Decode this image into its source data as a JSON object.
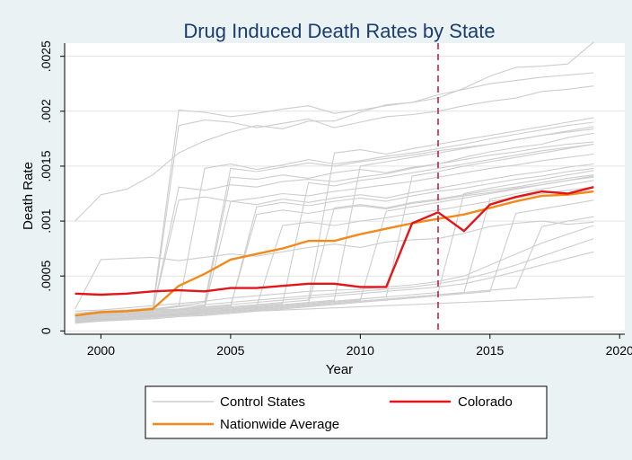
{
  "chart_data": {
    "type": "line",
    "title": "Drug Induced Death Rates by State",
    "xlabel": "Year",
    "ylabel": "Death Rate",
    "xlim": [
      1998.6,
      2020.2
    ],
    "ylim": [
      -3e-05,
      0.00262
    ],
    "x_ticks": [
      2000,
      2005,
      2010,
      2015,
      2020
    ],
    "x_tick_labels": [
      "2000",
      "2005",
      "2010",
      "2015",
      "2020"
    ],
    "y_ticks": [
      0,
      0.0005,
      0.001,
      0.0015,
      0.002,
      0.0025
    ],
    "y_tick_labels": [
      "0",
      ".0005",
      ".001",
      ".0015",
      ".002",
      ".0025"
    ],
    "grid": true,
    "reference_line": {
      "x": 2013,
      "style": "dashed",
      "color": "#b8123a"
    },
    "legend_position": "bottom",
    "colors": {
      "control": "#cdcdcd",
      "colorado": "#e0161a",
      "nationwide": "#f28a1b",
      "background": "#eaf2f3",
      "plot_background": "#ffffff"
    },
    "x": [
      1999,
      2000,
      2001,
      2002,
      2003,
      2004,
      2005,
      2006,
      2007,
      2008,
      2009,
      2010,
      2011,
      2012,
      2013,
      2014,
      2015,
      2016,
      2017,
      2018,
      2019
    ],
    "series": [
      {
        "name": "Colorado",
        "role": "highlight",
        "values": [
          0.00034,
          0.00033,
          0.00034,
          0.00036,
          0.00037,
          0.00036,
          0.00039,
          0.00039,
          0.00041,
          0.00043,
          0.00043,
          0.0004,
          0.0004,
          0.00098,
          0.00108,
          0.00091,
          0.00115,
          0.00122,
          0.00127,
          0.00125,
          0.00131
        ]
      },
      {
        "name": "Nationwide Average",
        "role": "highlight",
        "values": [
          0.00014,
          0.00017,
          0.00018,
          0.0002,
          0.00041,
          0.00052,
          0.00065,
          0.0007,
          0.00075,
          0.00082,
          0.00082,
          0.00088,
          0.00093,
          0.00098,
          0.00102,
          0.00106,
          0.00112,
          0.00118,
          0.00123,
          0.00124,
          0.00127
        ]
      },
      {
        "name": "Control States",
        "role": "background",
        "values": [
          0.001,
          0.00124,
          0.00129,
          0.00142,
          0.00162,
          0.00173,
          0.00181,
          0.00187,
          0.00184,
          0.00191,
          0.00191,
          0.00199,
          0.00206,
          0.00208,
          0.00212,
          0.00221,
          0.00232,
          0.0024,
          0.00241,
          0.00243,
          0.00263
        ]
      },
      {
        "role": "background",
        "values": [
          0.0002,
          0.00065,
          0.00066,
          0.00067,
          0.00064,
          0.00067,
          0.0007,
          0.00068,
          0.00072,
          0.00076,
          0.00079,
          0.00076,
          0.00081,
          0.00083,
          0.00084,
          0.00089,
          0.00095,
          0.00098,
          0.001,
          0.00097,
          0.00099
        ]
      },
      {
        "role": "background",
        "values": [
          0.00016,
          0.00018,
          0.00019,
          0.00021,
          0.00201,
          0.00199,
          0.00195,
          0.00198,
          0.00202,
          0.00205,
          0.00198,
          0.00201,
          0.00205,
          0.00208,
          0.00215,
          0.0022,
          0.00225,
          0.00228,
          0.00231,
          0.00233,
          0.00235
        ]
      },
      {
        "role": "background",
        "values": [
          0.00013,
          0.00015,
          0.00016,
          0.00018,
          0.00187,
          0.00192,
          0.0019,
          0.00185,
          0.00189,
          0.00193,
          0.00185,
          0.0019,
          0.00195,
          0.00197,
          0.002,
          0.00205,
          0.00209,
          0.00212,
          0.00218,
          0.0022,
          0.00223
        ]
      },
      {
        "role": "background",
        "values": [
          0.00012,
          0.00014,
          0.00015,
          0.00017,
          0.00131,
          0.00128,
          0.00133,
          0.00131,
          0.00136,
          0.00138,
          0.00136,
          0.0014,
          0.00143,
          0.00148,
          0.00152,
          0.00158,
          0.00163,
          0.00167,
          0.0017,
          0.00176,
          0.0018
        ]
      },
      {
        "role": "background",
        "values": [
          0.00011,
          0.00014,
          0.00016,
          0.00018,
          0.00119,
          0.00122,
          0.00118,
          0.00121,
          0.00125,
          0.00123,
          0.00127,
          0.0013,
          0.00133,
          0.00136,
          0.0014,
          0.00144,
          0.00148,
          0.00151,
          0.00155,
          0.00158,
          0.00161
        ]
      },
      {
        "role": "background",
        "values": [
          0.00013,
          0.00015,
          0.00017,
          0.00019,
          0.00022,
          0.00148,
          0.00152,
          0.00147,
          0.00151,
          0.00156,
          0.00152,
          0.00155,
          0.00159,
          0.00162,
          0.00166,
          0.0017,
          0.00175,
          0.00179,
          0.00183,
          0.00187,
          0.0019
        ]
      },
      {
        "role": "background",
        "values": [
          0.00014,
          0.00016,
          0.00018,
          0.0002,
          0.00023,
          0.00026,
          0.00148,
          0.00145,
          0.00149,
          0.00153,
          0.0015,
          0.00154,
          0.00157,
          0.0016,
          0.00164,
          0.00167,
          0.0017,
          0.00174,
          0.00178,
          0.00181,
          0.00184
        ]
      },
      {
        "role": "background",
        "values": [
          0.00012,
          0.00014,
          0.00016,
          0.00018,
          0.0002,
          0.00023,
          0.0014,
          0.00138,
          0.00142,
          0.00139,
          0.00144,
          0.00147,
          0.00144,
          0.00149,
          0.00152,
          0.00156,
          0.0016,
          0.00163,
          0.00167,
          0.0017,
          0.00172
        ]
      },
      {
        "role": "background",
        "values": [
          0.00011,
          0.00013,
          0.00015,
          0.00016,
          0.00019,
          0.00021,
          0.00118,
          0.00115,
          0.0012,
          0.00117,
          0.00121,
          0.00124,
          0.00121,
          0.00126,
          0.0013,
          0.00134,
          0.00138,
          0.00142,
          0.00145,
          0.00149,
          0.00152
        ]
      },
      {
        "role": "background",
        "values": [
          0.0001,
          0.00012,
          0.00013,
          0.00015,
          0.00017,
          0.00019,
          0.00022,
          0.00113,
          0.00117,
          0.00114,
          0.00118,
          0.00121,
          0.00118,
          0.00123,
          0.00127,
          0.0013,
          0.00134,
          0.00138,
          0.00141,
          0.00145,
          0.00148
        ]
      },
      {
        "role": "background",
        "values": [
          0.00012,
          0.00014,
          0.00015,
          0.00017,
          0.00019,
          0.00021,
          0.00023,
          0.00106,
          0.0011,
          0.00107,
          0.00111,
          0.00114,
          0.00111,
          0.00116,
          0.00119,
          0.00123,
          0.00126,
          0.0013,
          0.00133,
          0.00137,
          0.0014
        ]
      },
      {
        "role": "background",
        "values": [
          9e-05,
          0.00011,
          0.00013,
          0.00014,
          0.00016,
          0.00018,
          0.0002,
          0.00022,
          0.00096,
          0.00099,
          0.00096,
          0.001,
          0.00103,
          0.00107,
          0.0011,
          0.00114,
          0.00118,
          0.00121,
          0.00125,
          0.00128,
          0.00131
        ]
      },
      {
        "role": "background",
        "values": [
          0.0001,
          0.00012,
          0.00013,
          0.00015,
          0.00017,
          0.00019,
          0.00021,
          0.00023,
          0.00025,
          0.00135,
          0.00132,
          0.00137,
          0.0014,
          0.00144,
          0.00148,
          0.00152,
          0.00156,
          0.0016,
          0.00164,
          0.00167,
          0.0017
        ]
      },
      {
        "role": "background",
        "values": [
          0.00011,
          0.00013,
          0.00014,
          0.00016,
          0.00018,
          0.0002,
          0.00022,
          0.00024,
          0.00026,
          0.00028,
          0.00162,
          0.00165,
          0.00161,
          0.00166,
          0.0017,
          0.00174,
          0.00178,
          0.00182,
          0.00186,
          0.0019,
          0.00194
        ]
      },
      {
        "role": "background",
        "values": [
          9e-05,
          0.0001,
          0.00012,
          0.00013,
          0.00015,
          0.00017,
          0.00019,
          0.00021,
          0.00023,
          0.00025,
          0.00112,
          0.00115,
          0.00112,
          0.00117,
          0.0012,
          0.00124,
          0.00128,
          0.00131,
          0.00135,
          0.00139,
          0.00142
        ]
      },
      {
        "role": "background",
        "values": [
          0.0001,
          0.00011,
          0.00013,
          0.00014,
          0.00016,
          0.00018,
          0.0002,
          0.00022,
          0.00024,
          0.00026,
          0.00028,
          0.0015,
          0.00154,
          0.00158,
          0.00162,
          0.00166,
          0.0017,
          0.00174,
          0.00178,
          0.00182,
          0.00186
        ]
      },
      {
        "role": "background",
        "values": [
          8e-05,
          0.0001,
          0.00011,
          0.00013,
          0.00014,
          0.00016,
          0.00018,
          0.0002,
          0.00022,
          0.00024,
          0.00026,
          0.00028,
          0.00109,
          0.00113,
          0.00117,
          0.00121,
          0.00125,
          0.00129,
          0.00133,
          0.00137,
          0.00141
        ]
      },
      {
        "role": "background",
        "values": [
          9e-05,
          0.0001,
          0.00012,
          0.00013,
          0.00015,
          0.00017,
          0.00019,
          0.00021,
          0.00023,
          0.00025,
          0.00027,
          0.00029,
          0.00031,
          0.00141,
          0.00145,
          0.0015,
          0.00154,
          0.00158,
          0.00162,
          0.00166,
          0.0017
        ]
      },
      {
        "role": "background",
        "values": [
          0.0001,
          0.00011,
          0.00012,
          0.00014,
          0.00015,
          0.00017,
          0.00019,
          0.00021,
          0.00023,
          0.00025,
          0.00027,
          0.00029,
          0.00031,
          0.00033,
          0.00035,
          0.00125,
          0.0013,
          0.00134,
          0.00138,
          0.00142,
          0.00146
        ]
      },
      {
        "role": "background",
        "values": [
          8e-05,
          9e-05,
          0.00011,
          0.00012,
          0.00014,
          0.00015,
          0.00017,
          0.00019,
          0.00021,
          0.00023,
          0.00025,
          0.00027,
          0.00029,
          0.00031,
          0.00033,
          0.00035,
          0.0012,
          0.00125,
          0.00129,
          0.00133,
          0.00137
        ]
      },
      {
        "role": "background",
        "values": [
          7e-05,
          9e-05,
          0.0001,
          0.00011,
          0.00013,
          0.00014,
          0.00016,
          0.00018,
          0.0002,
          0.00022,
          0.00024,
          0.00026,
          0.00028,
          0.0003,
          0.00032,
          0.00034,
          0.00036,
          0.00107,
          0.00111,
          0.00115,
          0.00119
        ]
      },
      {
        "role": "background",
        "values": [
          9e-05,
          0.0001,
          0.00011,
          0.00013,
          0.00014,
          0.00016,
          0.00017,
          0.00019,
          0.00021,
          0.00023,
          0.00025,
          0.00027,
          0.00029,
          0.00031,
          0.00033,
          0.00035,
          0.00037,
          0.00039,
          0.00095,
          0.001,
          0.00104
        ]
      },
      {
        "role": "background",
        "values": [
          0.00011,
          0.00012,
          0.00013,
          0.00014,
          0.00015,
          0.00016,
          0.00017,
          0.00018,
          0.00019,
          0.0002,
          0.00021,
          0.00022,
          0.00023,
          0.00024,
          0.00025,
          0.00026,
          0.00027,
          0.00028,
          0.00029,
          0.0003,
          0.00031
        ]
      },
      {
        "role": "background",
        "values": [
          0.00018,
          0.00019,
          0.00021,
          0.00023,
          0.00025,
          0.00027,
          0.0003,
          0.00032,
          0.00034,
          0.00036,
          0.00037,
          0.00038,
          0.0004,
          0.00042,
          0.00045,
          0.0005,
          0.0006,
          0.0007,
          0.0008,
          0.00088,
          0.00096
        ]
      },
      {
        "role": "background",
        "values": [
          0.00016,
          0.00018,
          0.00019,
          0.0002,
          0.00022,
          0.00024,
          0.00026,
          0.00028,
          0.0003,
          0.00032,
          0.00034,
          0.00036,
          0.00038,
          0.0004,
          0.00043,
          0.00047,
          0.00053,
          0.0006,
          0.00068,
          0.00076,
          0.00084
        ]
      },
      {
        "role": "background",
        "values": [
          0.00014,
          0.00016,
          0.00017,
          0.00019,
          0.0002,
          0.00022,
          0.00024,
          0.00026,
          0.00028,
          0.0003,
          0.00032,
          0.00034,
          0.00036,
          0.00038,
          0.0004,
          0.00043,
          0.00048,
          0.00054,
          0.0006,
          0.00066,
          0.00072
        ]
      }
    ],
    "legend": [
      {
        "label": "Control States",
        "series": "Control States"
      },
      {
        "label": "Colorado",
        "series": "Colorado"
      },
      {
        "label": "Nationwide Average",
        "series": "Nationwide Average"
      }
    ]
  }
}
